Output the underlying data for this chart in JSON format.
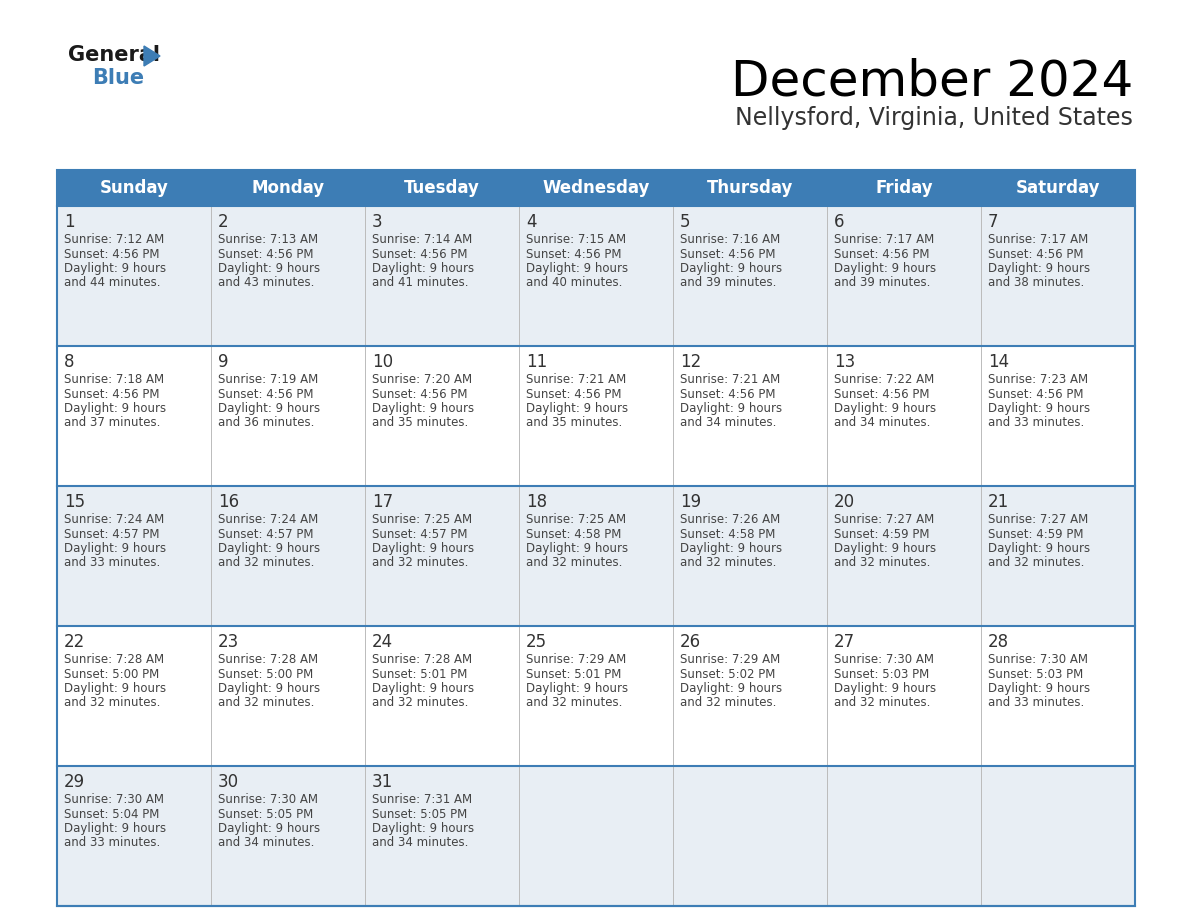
{
  "title": "December 2024",
  "subtitle": "Nellysford, Virginia, United States",
  "header_color": "#3d7db5",
  "header_text_color": "#ffffff",
  "row_bg_colors": [
    "#e8eef4",
    "#ffffff"
  ],
  "border_color": "#3d7db5",
  "text_color": "#444444",
  "day_num_color": "#333333",
  "day_headers": [
    "Sunday",
    "Monday",
    "Tuesday",
    "Wednesday",
    "Thursday",
    "Friday",
    "Saturday"
  ],
  "weeks": [
    [
      {
        "day": 1,
        "sunrise": "7:12 AM",
        "sunset": "4:56 PM",
        "daylight": "9 hours and 44 minutes"
      },
      {
        "day": 2,
        "sunrise": "7:13 AM",
        "sunset": "4:56 PM",
        "daylight": "9 hours and 43 minutes"
      },
      {
        "day": 3,
        "sunrise": "7:14 AM",
        "sunset": "4:56 PM",
        "daylight": "9 hours and 41 minutes"
      },
      {
        "day": 4,
        "sunrise": "7:15 AM",
        "sunset": "4:56 PM",
        "daylight": "9 hours and 40 minutes"
      },
      {
        "day": 5,
        "sunrise": "7:16 AM",
        "sunset": "4:56 PM",
        "daylight": "9 hours and 39 minutes"
      },
      {
        "day": 6,
        "sunrise": "7:17 AM",
        "sunset": "4:56 PM",
        "daylight": "9 hours and 39 minutes"
      },
      {
        "day": 7,
        "sunrise": "7:17 AM",
        "sunset": "4:56 PM",
        "daylight": "9 hours and 38 minutes"
      }
    ],
    [
      {
        "day": 8,
        "sunrise": "7:18 AM",
        "sunset": "4:56 PM",
        "daylight": "9 hours and 37 minutes"
      },
      {
        "day": 9,
        "sunrise": "7:19 AM",
        "sunset": "4:56 PM",
        "daylight": "9 hours and 36 minutes"
      },
      {
        "day": 10,
        "sunrise": "7:20 AM",
        "sunset": "4:56 PM",
        "daylight": "9 hours and 35 minutes"
      },
      {
        "day": 11,
        "sunrise": "7:21 AM",
        "sunset": "4:56 PM",
        "daylight": "9 hours and 35 minutes"
      },
      {
        "day": 12,
        "sunrise": "7:21 AM",
        "sunset": "4:56 PM",
        "daylight": "9 hours and 34 minutes"
      },
      {
        "day": 13,
        "sunrise": "7:22 AM",
        "sunset": "4:56 PM",
        "daylight": "9 hours and 34 minutes"
      },
      {
        "day": 14,
        "sunrise": "7:23 AM",
        "sunset": "4:56 PM",
        "daylight": "9 hours and 33 minutes"
      }
    ],
    [
      {
        "day": 15,
        "sunrise": "7:24 AM",
        "sunset": "4:57 PM",
        "daylight": "9 hours and 33 minutes"
      },
      {
        "day": 16,
        "sunrise": "7:24 AM",
        "sunset": "4:57 PM",
        "daylight": "9 hours and 32 minutes"
      },
      {
        "day": 17,
        "sunrise": "7:25 AM",
        "sunset": "4:57 PM",
        "daylight": "9 hours and 32 minutes"
      },
      {
        "day": 18,
        "sunrise": "7:25 AM",
        "sunset": "4:58 PM",
        "daylight": "9 hours and 32 minutes"
      },
      {
        "day": 19,
        "sunrise": "7:26 AM",
        "sunset": "4:58 PM",
        "daylight": "9 hours and 32 minutes"
      },
      {
        "day": 20,
        "sunrise": "7:27 AM",
        "sunset": "4:59 PM",
        "daylight": "9 hours and 32 minutes"
      },
      {
        "day": 21,
        "sunrise": "7:27 AM",
        "sunset": "4:59 PM",
        "daylight": "9 hours and 32 minutes"
      }
    ],
    [
      {
        "day": 22,
        "sunrise": "7:28 AM",
        "sunset": "5:00 PM",
        "daylight": "9 hours and 32 minutes"
      },
      {
        "day": 23,
        "sunrise": "7:28 AM",
        "sunset": "5:00 PM",
        "daylight": "9 hours and 32 minutes"
      },
      {
        "day": 24,
        "sunrise": "7:28 AM",
        "sunset": "5:01 PM",
        "daylight": "9 hours and 32 minutes"
      },
      {
        "day": 25,
        "sunrise": "7:29 AM",
        "sunset": "5:01 PM",
        "daylight": "9 hours and 32 minutes"
      },
      {
        "day": 26,
        "sunrise": "7:29 AM",
        "sunset": "5:02 PM",
        "daylight": "9 hours and 32 minutes"
      },
      {
        "day": 27,
        "sunrise": "7:30 AM",
        "sunset": "5:03 PM",
        "daylight": "9 hours and 32 minutes"
      },
      {
        "day": 28,
        "sunrise": "7:30 AM",
        "sunset": "5:03 PM",
        "daylight": "9 hours and 33 minutes"
      }
    ],
    [
      {
        "day": 29,
        "sunrise": "7:30 AM",
        "sunset": "5:04 PM",
        "daylight": "9 hours and 33 minutes"
      },
      {
        "day": 30,
        "sunrise": "7:30 AM",
        "sunset": "5:05 PM",
        "daylight": "9 hours and 34 minutes"
      },
      {
        "day": 31,
        "sunrise": "7:31 AM",
        "sunset": "5:05 PM",
        "daylight": "9 hours and 34 minutes"
      },
      null,
      null,
      null,
      null
    ]
  ]
}
